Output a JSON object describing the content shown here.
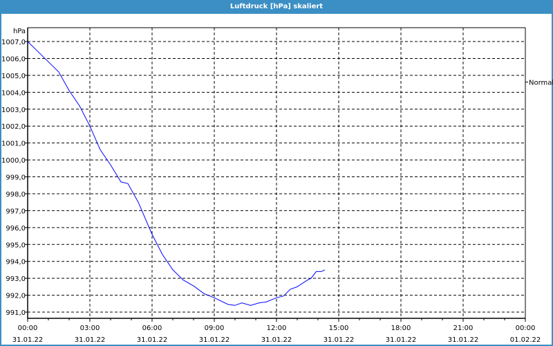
{
  "window": {
    "title": "Luftdruck [hPa] skaliert"
  },
  "chart_data": {
    "type": "line",
    "title": "Luftdruck [hPa] skaliert",
    "ylabel": "hPa",
    "ylim": [
      991.0,
      1007.0
    ],
    "yticks": [
      "1007,0",
      "1006,0",
      "1005,0",
      "1004,0",
      "1003,0",
      "1002,0",
      "1001,0",
      "1000,0",
      "999,0",
      "998,0",
      "997,0",
      "996,0",
      "995,0",
      "994,0",
      "993,0",
      "992,0",
      "991,0"
    ],
    "xlim": [
      "31.01.22 00:00",
      "01.02.22 00:00"
    ],
    "xticks": [
      {
        "time": "00:00",
        "date": "31.01.22"
      },
      {
        "time": "03:00",
        "date": "31.01.22"
      },
      {
        "time": "06:00",
        "date": "31.01.22"
      },
      {
        "time": "09:00",
        "date": "31.01.22"
      },
      {
        "time": "12:00",
        "date": "31.01.22"
      },
      {
        "time": "15:00",
        "date": "31.01.22"
      },
      {
        "time": "18:00",
        "date": "31.01.22"
      },
      {
        "time": "21:00",
        "date": "31.01.22"
      },
      {
        "time": "00:00",
        "date": "01.02.22"
      }
    ],
    "grid": true,
    "line_color": "#0000ff",
    "reference": {
      "label": "Normal",
      "value": 1004.6
    },
    "series": [
      {
        "x": [
          "00:00",
          "00:30",
          "01:00",
          "01:30",
          "02:00",
          "02:30",
          "03:00",
          "03:30",
          "04:00",
          "04:30",
          "04:50",
          "05:20",
          "06:00",
          "06:30",
          "07:00",
          "07:30",
          "08:00",
          "08:30",
          "09:00",
          "09:40",
          "10:00",
          "10:20",
          "10:45",
          "11:10",
          "11:30",
          "12:00",
          "12:20",
          "12:40",
          "13:00",
          "13:30",
          "13:40",
          "13:55",
          "14:10",
          "14:20"
        ],
        "y": [
          1007.0,
          1006.4,
          1005.8,
          1005.2,
          1004.1,
          1003.2,
          1002.0,
          1000.6,
          999.7,
          998.7,
          998.6,
          997.5,
          995.6,
          994.4,
          993.5,
          992.9,
          992.55,
          992.1,
          991.85,
          991.45,
          991.4,
          991.55,
          991.4,
          991.55,
          991.6,
          991.85,
          991.95,
          992.35,
          992.5,
          992.9,
          993.0,
          993.4,
          993.4,
          993.5
        ]
      }
    ]
  }
}
